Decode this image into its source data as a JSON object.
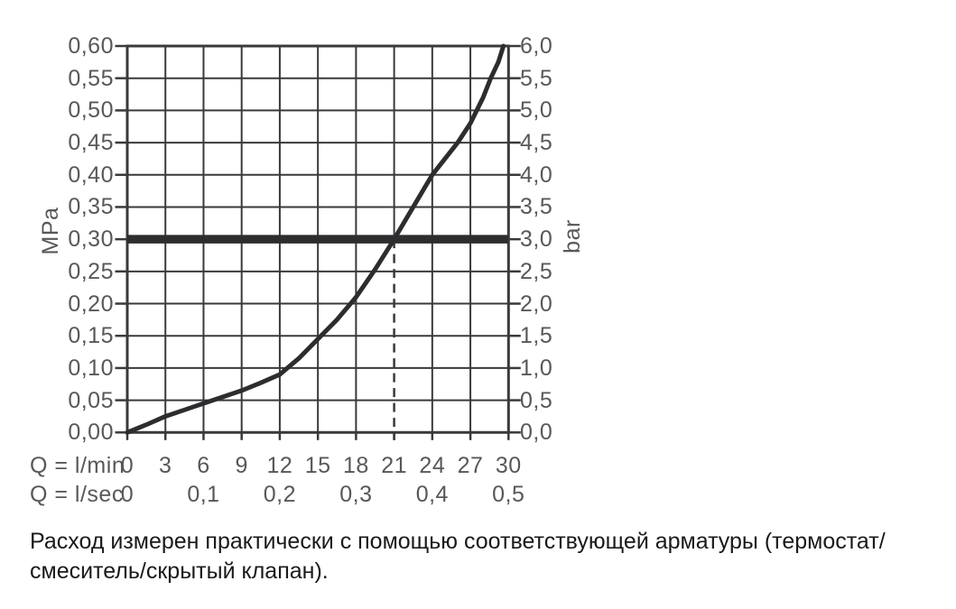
{
  "chart_data": {
    "type": "line",
    "description": "Flow rate vs. pressure loss curve for a shower fitting",
    "x_axis": {
      "row1_label": "Q = l/min",
      "row2_label": "Q = l/sec",
      "lmin_range": [
        0,
        30
      ],
      "lmin_ticks": [
        0,
        3,
        6,
        9,
        12,
        15,
        18,
        21,
        24,
        27,
        30
      ],
      "lmin_tick_labels": [
        "0",
        "3",
        "6",
        "9",
        "12",
        "15",
        "18",
        "21",
        "24",
        "27",
        "30"
      ],
      "lsec_ticks": [
        {
          "label": "0",
          "q_lmin": 0
        },
        {
          "label": "0,1",
          "q_lmin": 6
        },
        {
          "label": "0,2",
          "q_lmin": 12
        },
        {
          "label": "0,3",
          "q_lmin": 18
        },
        {
          "label": "0,4",
          "q_lmin": 24
        },
        {
          "label": "0,5",
          "q_lmin": 30
        }
      ]
    },
    "y_axis_left": {
      "unit": "MPa",
      "range": [
        0.0,
        0.6
      ],
      "tick_step": 0.05,
      "tick_labels": [
        "0,60",
        "0,55",
        "0,50",
        "0,45",
        "0,40",
        "0,35",
        "0,30",
        "0,25",
        "0,20",
        "0,15",
        "0,10",
        "0,05",
        "0,00"
      ],
      "tick_values": [
        0.6,
        0.55,
        0.5,
        0.45,
        0.4,
        0.35,
        0.3,
        0.25,
        0.2,
        0.15,
        0.1,
        0.05,
        0.0
      ]
    },
    "y_axis_right": {
      "unit": "bar",
      "range": [
        0.0,
        6.0
      ],
      "tick_step": 0.5,
      "tick_labels": [
        "6,0",
        "5,5",
        "5,0",
        "4,5",
        "4,0",
        "3,5",
        "3,0",
        "2,5",
        "2,0",
        "1,5",
        "1,0",
        "0,5",
        "0,0"
      ],
      "tick_values": [
        6.0,
        5.5,
        5.0,
        4.5,
        4.0,
        3.5,
        3.0,
        2.5,
        2.0,
        1.5,
        1.0,
        0.5,
        0.0
      ]
    },
    "grid": true,
    "legend": "none",
    "series": [
      {
        "name": "flow-pressure-curve",
        "points_lmin_mpa": [
          [
            0,
            0.0
          ],
          [
            1.5,
            0.012
          ],
          [
            3,
            0.025
          ],
          [
            4.5,
            0.035
          ],
          [
            6,
            0.045
          ],
          [
            7.5,
            0.055
          ],
          [
            9,
            0.065
          ],
          [
            10.5,
            0.077
          ],
          [
            12,
            0.09
          ],
          [
            13.5,
            0.115
          ],
          [
            15,
            0.145
          ],
          [
            16.5,
            0.175
          ],
          [
            18,
            0.21
          ],
          [
            19.5,
            0.253
          ],
          [
            21,
            0.3
          ],
          [
            22.5,
            0.35
          ],
          [
            24,
            0.4
          ],
          [
            25,
            0.425
          ],
          [
            26,
            0.45
          ],
          [
            27,
            0.48
          ],
          [
            28,
            0.52
          ],
          [
            28.6,
            0.55
          ],
          [
            29.2,
            0.575
          ],
          [
            29.6,
            0.6
          ]
        ]
      }
    ],
    "reference_line": {
      "orientation": "horizontal",
      "value_mpa": 0.3,
      "value_bar": 3.0,
      "style": "thick-solid"
    },
    "guide_line": {
      "orientation": "vertical",
      "value_lmin": 21,
      "from_mpa": 0.0,
      "to_mpa": 0.3,
      "style": "dashed"
    },
    "key_point": {
      "q_lmin": 21,
      "pressure_mpa": 0.3,
      "pressure_bar": 3.0
    },
    "colors": {
      "grid": "#3a3a3c",
      "curve": "#2d2d2f",
      "reference_line": "#2d2d2f",
      "tick_text": "#58585a",
      "caption_text": "#1a1a1a",
      "background": "#ffffff"
    }
  },
  "caption": "Расход измерен практически с помощью соответствующей арматуры (термостат/смеситель/скрытый клапан)."
}
